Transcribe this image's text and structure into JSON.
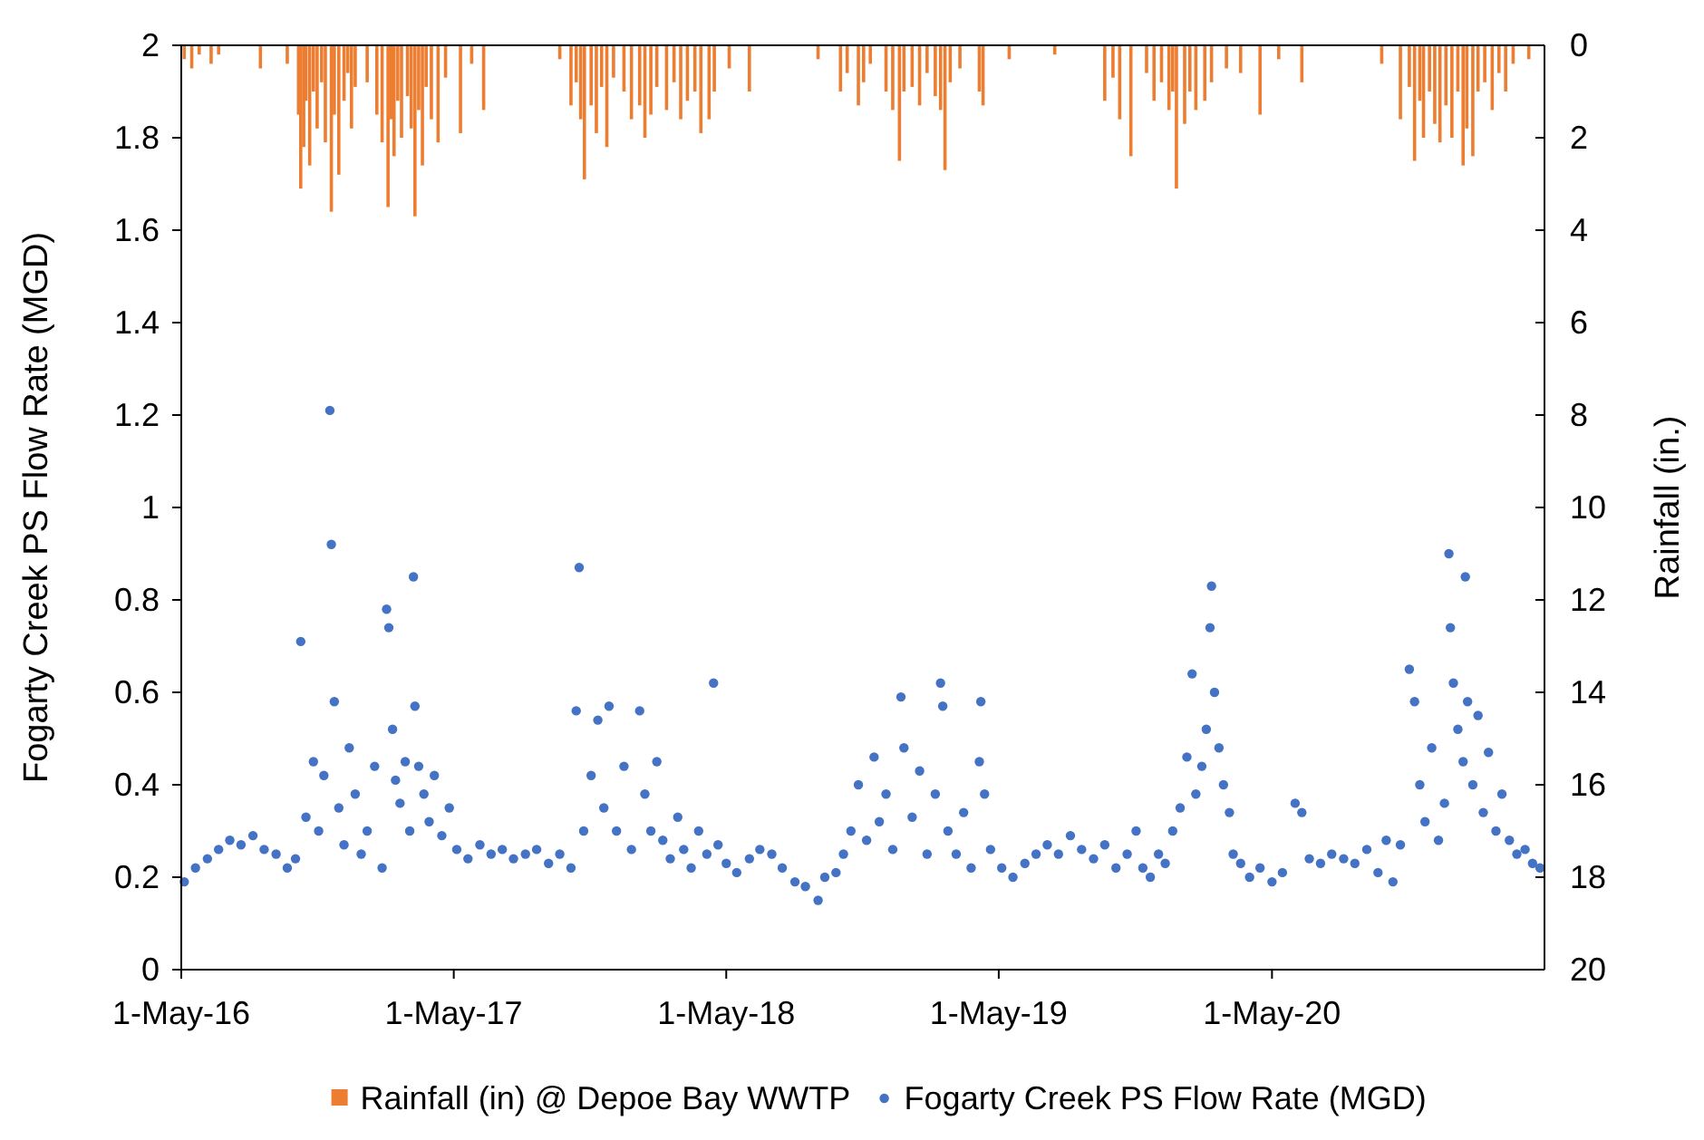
{
  "chart_data": {
    "type": "scatter",
    "ylabel": "Fogarty Creek PS Flow Rate (MGD)",
    "y2label": "Rainfall (in.)",
    "xlim": [
      "2016-05-01",
      "2021-05-01"
    ],
    "xticks": [
      {
        "value": "2016-05-01",
        "label": "1-May-16"
      },
      {
        "value": "2017-05-01",
        "label": "1-May-17"
      },
      {
        "value": "2018-05-01",
        "label": "1-May-18"
      },
      {
        "value": "2019-05-01",
        "label": "1-May-19"
      },
      {
        "value": "2020-05-01",
        "label": "1-May-20"
      }
    ],
    "ylim": [
      0,
      2
    ],
    "yticks": [
      0,
      0.2,
      0.4,
      0.6,
      0.8,
      1,
      1.2,
      1.4,
      1.6,
      1.8,
      2
    ],
    "y2lim": [
      20,
      0
    ],
    "y2ticks": [
      0,
      2,
      4,
      6,
      8,
      10,
      12,
      14,
      16,
      18,
      20
    ],
    "legend": "bottom",
    "marker": "circle",
    "grid": false,
    "series": [
      {
        "name": "Rainfall (in) @ Depoe Bay WWTP",
        "type": "bar",
        "axis": "y2",
        "color": "#ed7d31",
        "x": [
          "2016-05-05",
          "2016-05-15",
          "2016-05-25",
          "2016-06-10",
          "2016-06-20",
          "2016-08-15",
          "2016-09-20",
          "2016-10-05",
          "2016-10-08",
          "2016-10-12",
          "2016-10-15",
          "2016-10-20",
          "2016-10-25",
          "2016-10-30",
          "2016-11-05",
          "2016-11-10",
          "2016-11-18",
          "2016-11-22",
          "2016-11-28",
          "2016-12-05",
          "2016-12-10",
          "2016-12-15",
          "2016-12-20",
          "2017-01-05",
          "2017-01-18",
          "2017-01-25",
          "2017-02-02",
          "2017-02-06",
          "2017-02-10",
          "2017-02-15",
          "2017-02-20",
          "2017-02-28",
          "2017-03-05",
          "2017-03-10",
          "2017-03-15",
          "2017-03-20",
          "2017-03-25",
          "2017-04-01",
          "2017-04-10",
          "2017-04-20",
          "2017-05-10",
          "2017-05-25",
          "2017-06-10",
          "2017-09-20",
          "2017-10-05",
          "2017-10-12",
          "2017-10-18",
          "2017-10-23",
          "2017-11-01",
          "2017-11-08",
          "2017-11-15",
          "2017-11-22",
          "2017-12-01",
          "2017-12-15",
          "2017-12-25",
          "2018-01-05",
          "2018-01-12",
          "2018-01-20",
          "2018-01-28",
          "2018-02-10",
          "2018-02-20",
          "2018-03-01",
          "2018-03-10",
          "2018-03-20",
          "2018-03-28",
          "2018-04-08",
          "2018-04-15",
          "2018-05-05",
          "2018-06-01",
          "2018-09-01",
          "2018-10-01",
          "2018-10-10",
          "2018-10-25",
          "2018-11-01",
          "2018-11-10",
          "2018-12-01",
          "2018-12-10",
          "2018-12-19",
          "2018-12-25",
          "2019-01-05",
          "2019-01-15",
          "2019-01-25",
          "2019-02-05",
          "2019-02-12",
          "2019-02-18",
          "2019-02-25",
          "2019-03-10",
          "2019-04-05",
          "2019-04-10",
          "2019-05-15",
          "2019-07-15",
          "2019-09-20",
          "2019-10-01",
          "2019-10-10",
          "2019-10-25",
          "2019-11-15",
          "2019-11-25",
          "2019-12-05",
          "2019-12-15",
          "2019-12-20",
          "2019-12-25",
          "2020-01-05",
          "2020-01-12",
          "2020-01-20",
          "2020-02-01",
          "2020-02-10",
          "2020-03-01",
          "2020-03-20",
          "2020-04-15",
          "2020-05-10",
          "2020-06-10",
          "2020-09-25",
          "2020-10-20",
          "2020-11-01",
          "2020-11-08",
          "2020-11-15",
          "2020-11-20",
          "2020-11-28",
          "2020-12-05",
          "2020-12-12",
          "2020-12-20",
          "2020-12-28",
          "2021-01-05",
          "2021-01-12",
          "2021-01-17",
          "2021-01-25",
          "2021-02-01",
          "2021-02-10",
          "2021-02-20",
          "2021-03-01",
          "2021-03-10",
          "2021-03-20",
          "2021-04-10"
        ],
        "values": [
          0.3,
          0.5,
          0.2,
          0.4,
          0.2,
          0.5,
          0.4,
          1.5,
          3.1,
          2.2,
          1.2,
          2.6,
          1.0,
          1.8,
          0.8,
          2.1,
          3.6,
          1.5,
          2.8,
          1.2,
          0.6,
          1.8,
          0.9,
          0.8,
          1.5,
          2.1,
          3.5,
          1.6,
          2.4,
          1.2,
          2.0,
          1.1,
          1.8,
          3.7,
          1.4,
          2.6,
          0.9,
          1.6,
          2.1,
          0.7,
          1.9,
          0.4,
          1.4,
          0.3,
          1.3,
          0.8,
          1.6,
          2.9,
          1.3,
          1.9,
          0.9,
          2.2,
          0.7,
          1.0,
          1.6,
          1.3,
          2.0,
          1.5,
          0.9,
          1.4,
          0.8,
          1.6,
          1.2,
          1.0,
          1.9,
          1.6,
          1.0,
          0.5,
          1.0,
          0.3,
          1.0,
          0.6,
          1.3,
          0.8,
          0.4,
          1.0,
          1.4,
          2.5,
          1.0,
          0.9,
          1.3,
          0.6,
          1.1,
          1.4,
          2.7,
          0.8,
          0.5,
          1.0,
          1.3,
          0.3,
          0.2,
          1.2,
          0.7,
          1.6,
          2.4,
          0.6,
          1.2,
          0.8,
          1.4,
          1.0,
          3.1,
          1.7,
          1.0,
          1.4,
          1.2,
          0.8,
          0.5,
          0.6,
          1.5,
          0.3,
          0.8,
          0.4,
          1.6,
          0.9,
          2.5,
          1.2,
          2.0,
          1.0,
          1.7,
          2.1,
          1.3,
          2.0,
          1.0,
          2.6,
          1.8,
          2.4,
          1.0,
          0.8,
          1.4,
          0.6,
          1.0,
          0.4,
          0.3
        ]
      },
      {
        "name": "Fogarty Creek PS Flow Rate (MGD)",
        "color": "#4472c4",
        "x": [
          "2016-05-05",
          "2016-05-20",
          "2016-06-05",
          "2016-06-20",
          "2016-07-05",
          "2016-07-20",
          "2016-08-05",
          "2016-08-20",
          "2016-09-05",
          "2016-09-20",
          "2016-10-01",
          "2016-10-08",
          "2016-10-15",
          "2016-10-25",
          "2016-11-01",
          "2016-11-08",
          "2016-11-16",
          "2016-11-18",
          "2016-11-22",
          "2016-11-28",
          "2016-12-05",
          "2016-12-12",
          "2016-12-20",
          "2016-12-28",
          "2017-01-05",
          "2017-01-15",
          "2017-01-25",
          "2017-01-31",
          "2017-02-03",
          "2017-02-08",
          "2017-02-12",
          "2017-02-18",
          "2017-02-25",
          "2017-03-03",
          "2017-03-08",
          "2017-03-10",
          "2017-03-15",
          "2017-03-22",
          "2017-03-29",
          "2017-04-05",
          "2017-04-15",
          "2017-04-25",
          "2017-05-05",
          "2017-05-20",
          "2017-06-05",
          "2017-06-20",
          "2017-07-05",
          "2017-07-20",
          "2017-08-05",
          "2017-08-20",
          "2017-09-05",
          "2017-09-20",
          "2017-10-05",
          "2017-10-12",
          "2017-10-16",
          "2017-10-22",
          "2017-11-01",
          "2017-11-10",
          "2017-11-18",
          "2017-11-25",
          "2017-12-05",
          "2017-12-15",
          "2017-12-25",
          "2018-01-05",
          "2018-01-12",
          "2018-01-20",
          "2018-01-28",
          "2018-02-05",
          "2018-02-15",
          "2018-02-25",
          "2018-03-05",
          "2018-03-15",
          "2018-03-25",
          "2018-04-05",
          "2018-04-14",
          "2018-04-20",
          "2018-05-01",
          "2018-05-15",
          "2018-06-01",
          "2018-06-15",
          "2018-07-01",
          "2018-07-15",
          "2018-08-01",
          "2018-08-15",
          "2018-09-01",
          "2018-09-10",
          "2018-09-25",
          "2018-10-05",
          "2018-10-15",
          "2018-10-25",
          "2018-11-05",
          "2018-11-15",
          "2018-11-22",
          "2018-12-01",
          "2018-12-10",
          "2018-12-21",
          "2018-12-25",
          "2019-01-05",
          "2019-01-15",
          "2019-01-25",
          "2019-02-05",
          "2019-02-12",
          "2019-02-15",
          "2019-02-22",
          "2019-03-05",
          "2019-03-15",
          "2019-03-25",
          "2019-04-05",
          "2019-04-07",
          "2019-04-12",
          "2019-04-20",
          "2019-05-05",
          "2019-05-20",
          "2019-06-05",
          "2019-06-20",
          "2019-07-05",
          "2019-07-20",
          "2019-08-05",
          "2019-08-20",
          "2019-09-05",
          "2019-09-20",
          "2019-10-05",
          "2019-10-20",
          "2019-11-01",
          "2019-11-10",
          "2019-11-20",
          "2019-12-01",
          "2019-12-10",
          "2019-12-20",
          "2019-12-30",
          "2020-01-08",
          "2020-01-15",
          "2020-01-20",
          "2020-01-28",
          "2020-02-03",
          "2020-02-08",
          "2020-02-10",
          "2020-02-14",
          "2020-02-20",
          "2020-02-26",
          "2020-03-05",
          "2020-03-10",
          "2020-03-20",
          "2020-04-01",
          "2020-04-15",
          "2020-05-01",
          "2020-05-15",
          "2020-06-01",
          "2020-06-10",
          "2020-06-20",
          "2020-07-05",
          "2020-07-20",
          "2020-08-05",
          "2020-08-20",
          "2020-09-05",
          "2020-09-20",
          "2020-10-01",
          "2020-10-10",
          "2020-10-20",
          "2020-11-01",
          "2020-11-08",
          "2020-11-15",
          "2020-11-22",
          "2020-12-01",
          "2020-12-10",
          "2020-12-18",
          "2020-12-24",
          "2020-12-26",
          "2020-12-30",
          "2021-01-05",
          "2021-01-12",
          "2021-01-15",
          "2021-01-18",
          "2021-01-25",
          "2021-02-01",
          "2021-02-08",
          "2021-02-15",
          "2021-02-25",
          "2021-03-05",
          "2021-03-15",
          "2021-03-25",
          "2021-04-05",
          "2021-04-15",
          "2021-04-25"
        ],
        "values": [
          0.19,
          0.22,
          0.24,
          0.26,
          0.28,
          0.27,
          0.29,
          0.26,
          0.25,
          0.22,
          0.24,
          0.71,
          0.33,
          0.45,
          0.3,
          0.42,
          1.21,
          0.92,
          0.58,
          0.35,
          0.27,
          0.48,
          0.38,
          0.25,
          0.3,
          0.44,
          0.22,
          0.78,
          0.74,
          0.52,
          0.41,
          0.36,
          0.45,
          0.3,
          0.85,
          0.57,
          0.44,
          0.38,
          0.32,
          0.42,
          0.29,
          0.35,
          0.26,
          0.24,
          0.27,
          0.25,
          0.26,
          0.24,
          0.25,
          0.26,
          0.23,
          0.25,
          0.22,
          0.56,
          0.87,
          0.3,
          0.42,
          0.54,
          0.35,
          0.57,
          0.3,
          0.44,
          0.26,
          0.56,
          0.38,
          0.3,
          0.45,
          0.28,
          0.24,
          0.33,
          0.26,
          0.22,
          0.3,
          0.25,
          0.62,
          0.27,
          0.23,
          0.21,
          0.24,
          0.26,
          0.25,
          0.22,
          0.19,
          0.18,
          0.15,
          0.2,
          0.21,
          0.25,
          0.3,
          0.4,
          0.28,
          0.46,
          0.32,
          0.38,
          0.26,
          0.59,
          0.48,
          0.33,
          0.43,
          0.25,
          0.38,
          0.62,
          0.57,
          0.3,
          0.25,
          0.34,
          0.22,
          0.45,
          0.58,
          0.38,
          0.26,
          0.22,
          0.2,
          0.23,
          0.25,
          0.27,
          0.25,
          0.29,
          0.26,
          0.24,
          0.27,
          0.22,
          0.25,
          0.3,
          0.22,
          0.2,
          0.25,
          0.23,
          0.3,
          0.35,
          0.46,
          0.64,
          0.38,
          0.44,
          0.52,
          0.74,
          0.83,
          0.6,
          0.48,
          0.4,
          0.34,
          0.25,
          0.23,
          0.2,
          0.22,
          0.19,
          0.21,
          0.36,
          0.34,
          0.24,
          0.23,
          0.25,
          0.24,
          0.23,
          0.26,
          0.21,
          0.28,
          0.19,
          0.27,
          0.65,
          0.58,
          0.4,
          0.32,
          0.48,
          0.28,
          0.36,
          0.9,
          0.74,
          0.62,
          0.52,
          0.45,
          0.85,
          0.58,
          0.4,
          0.55,
          0.34,
          0.47,
          0.3,
          0.38,
          0.28,
          0.25,
          0.26,
          0.23,
          0.22
        ]
      }
    ]
  }
}
